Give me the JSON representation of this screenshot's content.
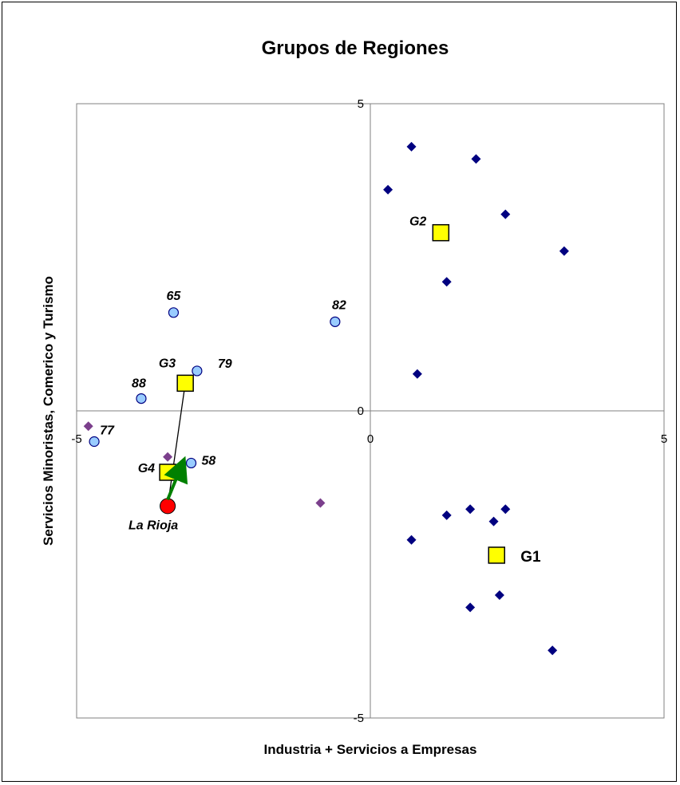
{
  "chart_data": {
    "type": "scatter",
    "title": "Grupos de Regiones",
    "xlabel": "Industria + Servicios a Empresas",
    "ylabel": "Servicios Minoristas, Comerico y Turismo",
    "xlim": [
      -5,
      5
    ],
    "ylim": [
      -5,
      5
    ],
    "x_ticks": [
      "-5",
      "0",
      "5"
    ],
    "y_ticks": [
      "5",
      "0",
      "-5"
    ],
    "grid": false,
    "colors": {
      "diamond": "#000080",
      "diamond_alt": "#7b3f8c",
      "circle_fill": "#99ccff",
      "centroid_fill": "#ffff00",
      "la_rioja": "#ff0000",
      "arrow": "#008000"
    },
    "diamonds": [
      {
        "x": 0.7,
        "y": 4.3
      },
      {
        "x": 1.8,
        "y": 4.1
      },
      {
        "x": 0.3,
        "y": 3.6
      },
      {
        "x": 2.3,
        "y": 3.2
      },
      {
        "x": 3.3,
        "y": 2.6
      },
      {
        "x": 1.3,
        "y": 2.1
      },
      {
        "x": 0.8,
        "y": 0.6
      },
      {
        "x": 1.3,
        "y": -1.7
      },
      {
        "x": 1.7,
        "y": -1.6
      },
      {
        "x": 2.3,
        "y": -1.6
      },
      {
        "x": 2.1,
        "y": -1.8
      },
      {
        "x": 0.7,
        "y": -2.1
      },
      {
        "x": 2.2,
        "y": -3.0
      },
      {
        "x": 1.7,
        "y": -3.2
      },
      {
        "x": 3.1,
        "y": -3.9
      }
    ],
    "diamonds_alt": [
      {
        "x": -4.8,
        "y": -0.25
      },
      {
        "x": -3.45,
        "y": -0.75
      },
      {
        "x": -0.85,
        "y": -1.5
      }
    ],
    "circles": [
      {
        "x": -3.35,
        "y": 1.6,
        "label": "65"
      },
      {
        "x": -0.6,
        "y": 1.45,
        "label": "82"
      },
      {
        "x": -2.95,
        "y": 0.65,
        "label": "79"
      },
      {
        "x": -3.9,
        "y": 0.2,
        "label": "88"
      },
      {
        "x": -4.7,
        "y": -0.5,
        "label": "77"
      },
      {
        "x": -3.05,
        "y": -0.85,
        "label": "58"
      }
    ],
    "centroids": [
      {
        "x": 2.15,
        "y": -2.35,
        "label": "G1"
      },
      {
        "x": 1.2,
        "y": 2.9,
        "label": "G2"
      },
      {
        "x": -3.15,
        "y": 0.45,
        "label": "G3"
      },
      {
        "x": -3.45,
        "y": -1.0,
        "label": "G4"
      }
    ],
    "highlight": {
      "x": -3.45,
      "y": -1.55,
      "label": "La Rioja"
    },
    "arrow": {
      "from": [
        -3.45,
        -1.55
      ],
      "to": [
        -3.25,
        -0.9
      ]
    },
    "connector": {
      "from": [
        -3.15,
        0.45
      ],
      "to": [
        -3.45,
        -1.55
      ]
    }
  }
}
